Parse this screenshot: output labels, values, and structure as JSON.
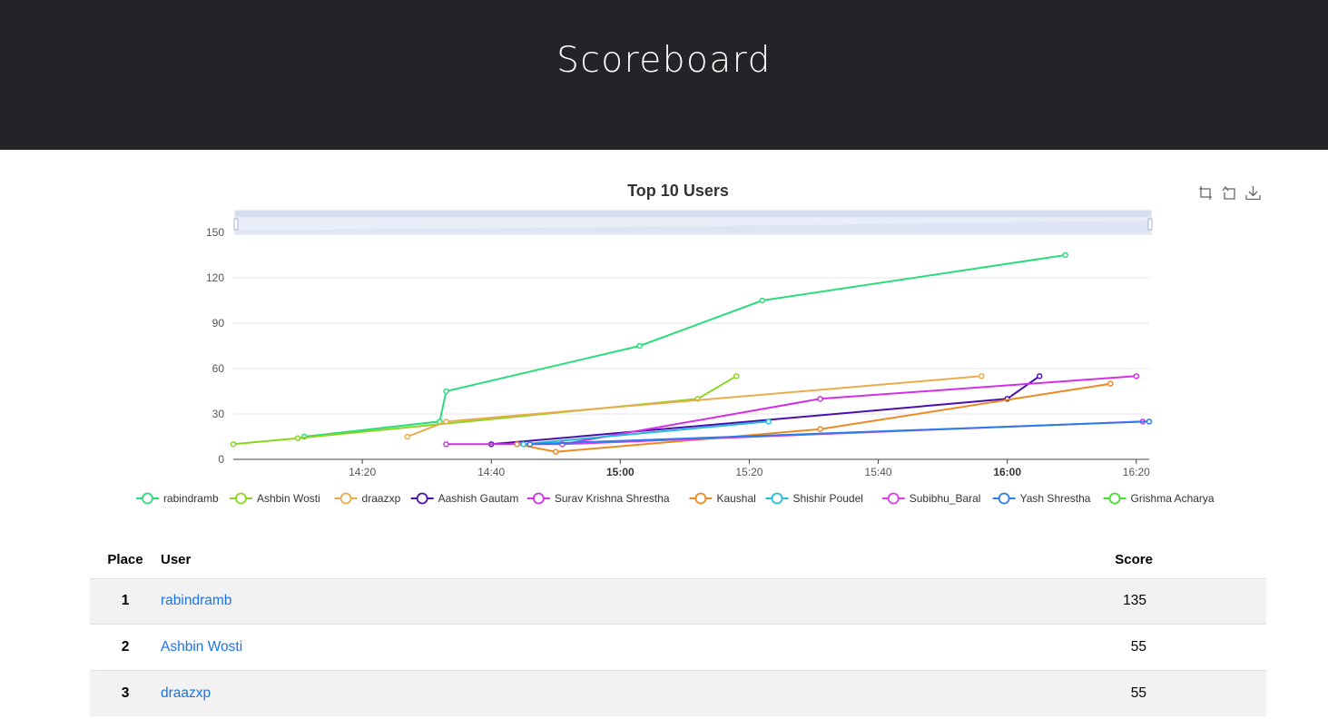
{
  "header": {
    "title": "Scoreboard"
  },
  "toolbox": [
    {
      "name": "zoom-icon"
    },
    {
      "name": "zoom-reset-icon"
    },
    {
      "name": "download-icon"
    }
  ],
  "chart_data": {
    "type": "line",
    "title": "Top 10 Users",
    "ylim": [
      0,
      150
    ],
    "y_ticks": [
      0,
      30,
      60,
      90,
      120,
      150
    ],
    "x_ticks": [
      "14:20",
      "14:40",
      "15:00",
      "15:20",
      "15:40",
      "16:00",
      "16:20"
    ],
    "x_ticks_bold": [
      "15:00",
      "16:00"
    ],
    "grid": true,
    "legend_position": "bottom",
    "series": [
      {
        "name": "rabindramb",
        "color": "#2bdc7a",
        "points": [
          [
            "14:11",
            15
          ],
          [
            "14:32",
            25
          ],
          [
            "14:33",
            45
          ],
          [
            "15:03",
            75
          ],
          [
            "15:22",
            105
          ],
          [
            "16:09",
            135
          ]
        ]
      },
      {
        "name": "Ashbin Wosti",
        "color": "#8ad51f",
        "points": [
          [
            "14:00",
            10
          ],
          [
            "14:10",
            14
          ],
          [
            "15:12",
            40
          ],
          [
            "15:18",
            55
          ]
        ]
      },
      {
        "name": "draazxp",
        "color": "#ecaa4a",
        "points": [
          [
            "14:27",
            15
          ],
          [
            "14:33",
            25
          ],
          [
            "15:56",
            55
          ]
        ]
      },
      {
        "name": "Aashish Gautam",
        "color": "#4a0fb2",
        "points": [
          [
            "14:40",
            10
          ],
          [
            "16:00",
            40
          ],
          [
            "16:05",
            55
          ]
        ]
      },
      {
        "name": "Surav Krishna Shrestha",
        "color": "#d42ee8",
        "points": [
          [
            "14:33",
            10
          ],
          [
            "14:51",
            10
          ],
          [
            "15:31",
            40
          ],
          [
            "16:20",
            55
          ]
        ]
      },
      {
        "name": "Kaushal",
        "color": "#ec8a22",
        "points": [
          [
            "14:44",
            10
          ],
          [
            "14:50",
            5
          ],
          [
            "15:31",
            20
          ],
          [
            "16:16",
            50
          ]
        ]
      },
      {
        "name": "Shishir Poudel",
        "color": "#22bcd6",
        "points": [
          [
            "14:45",
            10
          ],
          [
            "15:23",
            25
          ]
        ]
      },
      {
        "name": "Subibhu_Baral",
        "color": "#dc3aec",
        "points": [
          [
            "14:51",
            10
          ],
          [
            "16:21",
            25
          ]
        ]
      },
      {
        "name": "Yash Shrestha",
        "color": "#2a7ee8",
        "points": [
          [
            "14:46",
            10
          ],
          [
            "16:22",
            25
          ]
        ]
      },
      {
        "name": "Grishma Acharya",
        "color": "#44e02a",
        "points": []
      }
    ]
  },
  "table": {
    "headers": {
      "place": "Place",
      "user": "User",
      "score": "Score"
    },
    "rows": [
      {
        "place": "1",
        "user": "rabindramb",
        "score": "135"
      },
      {
        "place": "2",
        "user": "Ashbin Wosti",
        "score": "55"
      },
      {
        "place": "3",
        "user": "draazxp",
        "score": "55"
      }
    ]
  }
}
